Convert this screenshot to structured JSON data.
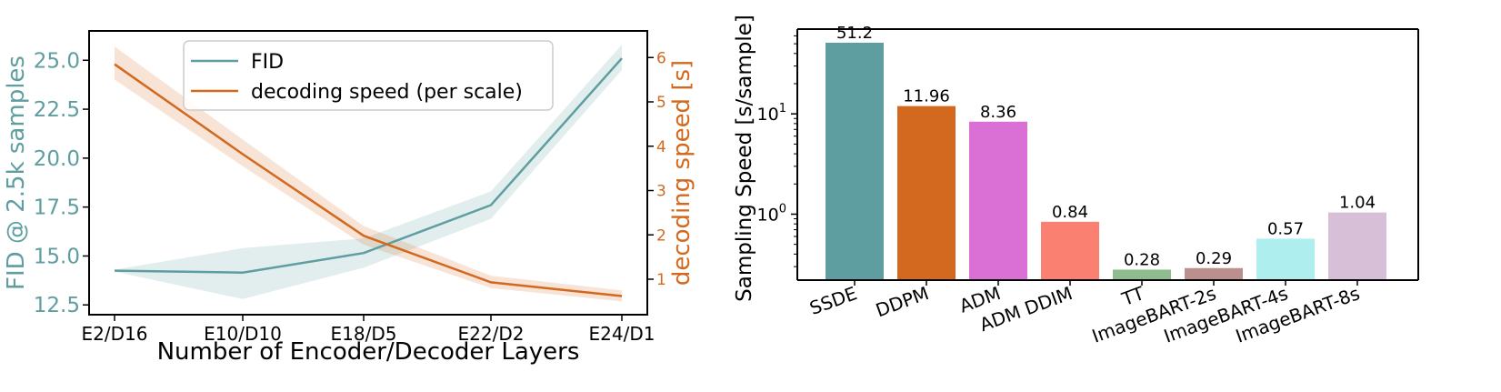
{
  "chart_data": [
    {
      "type": "line",
      "xlabel": "Number of Encoder/Decoder Layers",
      "categories": [
        "E2/D16",
        "E10/D10",
        "E18/D5",
        "E22/D2",
        "E24/D1"
      ],
      "ylabel_left": "FID @ 2.5k samples",
      "ylabel_right": "decoding speed [s]",
      "ylim_left": [
        12.0,
        26.5
      ],
      "ylim_right": [
        0.2,
        6.6
      ],
      "yticks_left": [
        "12.5",
        "15.0",
        "17.5",
        "20.0",
        "22.5",
        "25.0"
      ],
      "yticks_right": [
        "1",
        "2",
        "3",
        "4",
        "5",
        "6"
      ],
      "legend_position": "top-center",
      "series": [
        {
          "name": "FID",
          "axis": "left",
          "color": "#5f9ea0",
          "values": [
            14.25,
            14.15,
            15.15,
            17.6,
            25.1
          ],
          "band_low": [
            14.2,
            12.8,
            14.4,
            16.9,
            24.5
          ],
          "band_high": [
            14.3,
            15.4,
            15.9,
            18.3,
            25.8
          ]
        },
        {
          "name": "decoding speed (per scale)",
          "axis": "right",
          "color": "#d2691e",
          "values": [
            5.85,
            3.82,
            1.98,
            0.93,
            0.62
          ],
          "band_low": [
            5.5,
            3.55,
            1.78,
            0.8,
            0.5
          ],
          "band_high": [
            6.25,
            4.15,
            2.2,
            1.08,
            0.75
          ]
        }
      ]
    },
    {
      "type": "bar",
      "ylabel": "Sampling Speed [s/sample]",
      "yscale": "log",
      "ylim": [
        0.22,
        70
      ],
      "yticks": [
        {
          "value": 1,
          "base": "10",
          "exp": "0"
        },
        {
          "value": 10,
          "base": "10",
          "exp": "1"
        }
      ],
      "categories": [
        "SSDE",
        "DDPM",
        "ADM",
        "ADM DDIM",
        "TT",
        "ImageBART-2s",
        "ImageBART-4s",
        "ImageBART-8s"
      ],
      "values": [
        51.2,
        11.96,
        8.36,
        0.84,
        0.28,
        0.29,
        0.57,
        1.04
      ],
      "labels": [
        "51.2",
        "11.96",
        "8.36",
        "0.84",
        "0.28",
        "0.29",
        "0.57",
        "1.04"
      ],
      "colors": [
        "#5f9ea0",
        "#d2691e",
        "#da70d6",
        "#fa8072",
        "#8fbc8f",
        "#bc8f8f",
        "#afeeee",
        "#d8bfd8"
      ]
    }
  ]
}
